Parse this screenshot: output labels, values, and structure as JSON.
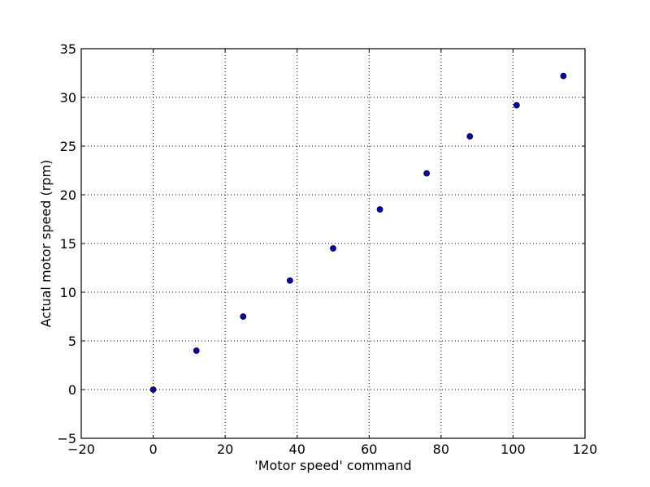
{
  "chart_data": {
    "type": "scatter",
    "title": "",
    "xlabel": "'Motor speed' command",
    "ylabel": "Actual motor speed (rpm)",
    "xlim": [
      -20,
      120
    ],
    "ylim": [
      -5,
      35
    ],
    "xticks": [
      -20,
      0,
      20,
      40,
      60,
      80,
      100,
      120
    ],
    "yticks": [
      -5,
      0,
      5,
      10,
      15,
      20,
      25,
      30,
      35
    ],
    "xtick_labels": [
      "−20",
      "0",
      "20",
      "40",
      "60",
      "80",
      "100",
      "120"
    ],
    "ytick_labels": [
      "−5",
      "0",
      "5",
      "10",
      "15",
      "20",
      "25",
      "30",
      "35"
    ],
    "grid": true,
    "legend": "none",
    "series": [
      {
        "color": "#0000cc",
        "x": [
          0,
          12,
          25,
          38,
          50,
          63,
          76,
          88,
          101,
          114
        ],
        "y": [
          0,
          4,
          7.5,
          11.2,
          14.5,
          18.5,
          22.2,
          26,
          29.2,
          32.2
        ]
      }
    ]
  }
}
